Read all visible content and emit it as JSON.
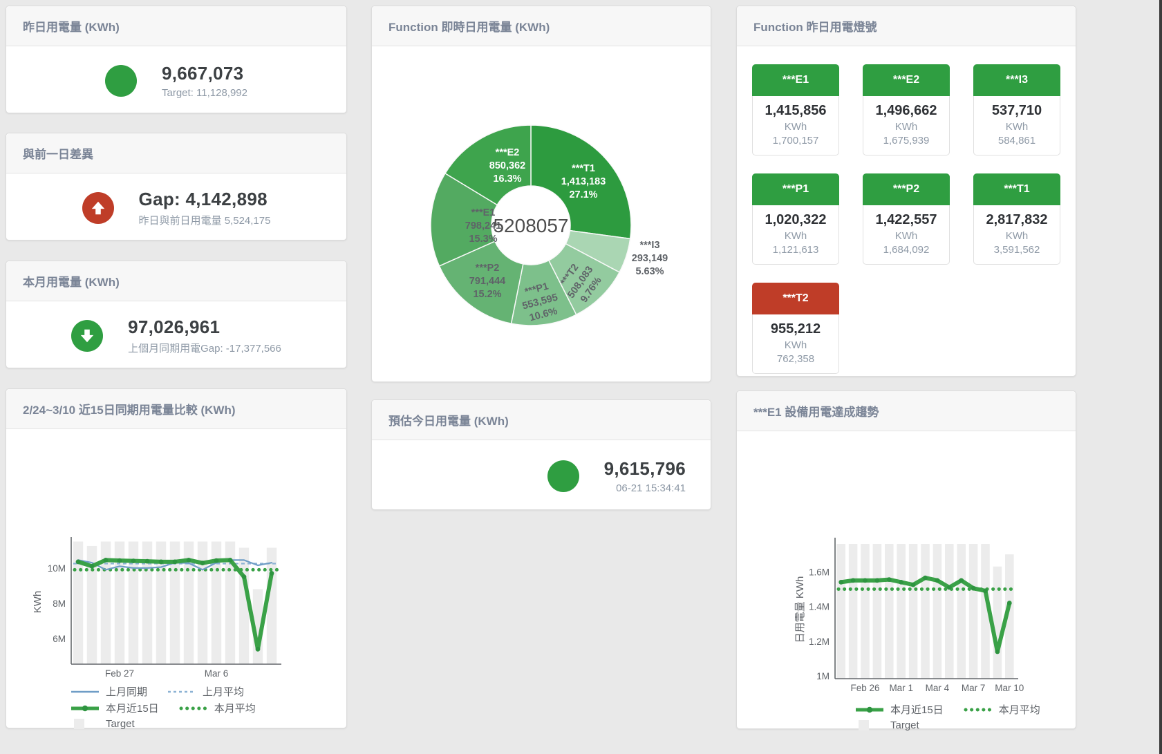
{
  "page": {
    "background": "#e9e9e9",
    "edge_color": "#3c3c3c"
  },
  "colors": {
    "green": "#2f9e41",
    "red": "#bf3d28",
    "line_green": "#3aa147",
    "blue": "#6f9dc6",
    "blue_light": "#8cb2d4",
    "bar_gray": "#ececec",
    "title_gray": "#7a8496",
    "value_dark": "#3c4043",
    "sub_gray": "#8e99a6"
  },
  "cards": {
    "yesterday": {
      "title": "昨日用電量 (KWh)",
      "value": "9,667,073",
      "subtitle": "Target: 11,128,992",
      "indicator": "green-circle"
    },
    "day_gap": {
      "title": "與前一日差異",
      "value": "Gap: 4,142,898",
      "subtitle": "昨日與前日用電量 5,524,175",
      "indicator": "red-circle-up-arrow"
    },
    "month": {
      "title": "本月用電量 (KWh)",
      "value": "97,026,961",
      "subtitle": "上個月同期用電Gap: -17,377,566",
      "indicator": "green-circle-down-arrow"
    },
    "realtime_donut": {
      "title": "Function 即時日用電量 (KWh)"
    },
    "lights": {
      "title": "Function 昨日用電燈號",
      "tiles": [
        {
          "label": "***E1",
          "value": "1,415,856",
          "unit": "KWh",
          "target": "1,700,157",
          "status": "green"
        },
        {
          "label": "***E2",
          "value": "1,496,662",
          "unit": "KWh",
          "target": "1,675,939",
          "status": "green"
        },
        {
          "label": "***I3",
          "value": "537,710",
          "unit": "KWh",
          "target": "584,861",
          "status": "green"
        },
        {
          "label": "***P1",
          "value": "1,020,322",
          "unit": "KWh",
          "target": "1,121,613",
          "status": "green"
        },
        {
          "label": "***P2",
          "value": "1,422,557",
          "unit": "KWh",
          "target": "1,684,092",
          "status": "green"
        },
        {
          "label": "***T1",
          "value": "2,817,832",
          "unit": "KWh",
          "target": "3,591,562",
          "status": "green"
        },
        {
          "label": "***T2",
          "value": "955,212",
          "unit": "KWh",
          "target": "762,358",
          "status": "red"
        }
      ]
    },
    "compare": {
      "title": "2/24~3/10 近15日同期用電量比較 (KWh)"
    },
    "estimate": {
      "title": "預估今日用電量 (KWh)",
      "value": "9,615,796",
      "subtitle": "06-21 15:34:41",
      "indicator": "green-circle"
    },
    "trend": {
      "title": "***E1 設備用電達成趨勢"
    }
  },
  "chart_data": [
    {
      "id": "donut",
      "type": "pie",
      "title": "Function 即時日用電量 (KWh)",
      "center_total": "5208057",
      "slices": [
        {
          "label": "***T1",
          "value": 1413183,
          "percent": "27.1%",
          "color": "#2d9b3f",
          "label_color": "light"
        },
        {
          "label": "***I3",
          "value": 293149,
          "percent": "5.63%",
          "color": "#aad6b3",
          "label_color": "dark",
          "label_outside": true
        },
        {
          "label": "***T2",
          "value": 508083,
          "percent": "9.76%",
          "color": "#93cb9f",
          "label_color": "dark"
        },
        {
          "label": "***P1",
          "value": 553595,
          "percent": "10.6%",
          "color": "#7dc08b",
          "label_color": "dark"
        },
        {
          "label": "***P2",
          "value": 791444,
          "percent": "15.2%",
          "color": "#65b373",
          "label_color": "dark"
        },
        {
          "label": "***E1",
          "value": 798241,
          "percent": "15.3%",
          "color": "#53aa61",
          "label_color": "dark"
        },
        {
          "label": "***E2",
          "value": 850362,
          "percent": "16.3%",
          "color": "#3ea44d",
          "label_color": "light"
        }
      ]
    },
    {
      "id": "compare",
      "type": "line+bar",
      "title": "2/24~3/10 近15日同期用電量比較 (KWh)",
      "ylabel": "KWh",
      "x_count": 15,
      "xticks": [
        {
          "index": 3,
          "label": "Feb 27"
        },
        {
          "index": 10,
          "label": "Mar 6"
        }
      ],
      "yticks": [
        {
          "value": 6000000,
          "label": "6M"
        },
        {
          "value": 8000000,
          "label": "8M"
        },
        {
          "value": 10000000,
          "label": "10M"
        }
      ],
      "ylim": [
        4550000,
        11600000
      ],
      "series": [
        {
          "name": "上月同期",
          "kind": "line",
          "color": "#6f9dc6",
          "values": [
            10450000,
            10300000,
            9900000,
            10100000,
            10000000,
            10000000,
            10050000,
            10300000,
            10280000,
            9900000,
            10300000,
            10450000,
            10450000,
            10150000,
            10300000
          ]
        },
        {
          "name": "上月平均",
          "kind": "hline-dash",
          "color": "#8cb2d4",
          "value": 10250000
        },
        {
          "name": "本月近15日",
          "kind": "line-thick",
          "color": "#3aa147",
          "values": [
            10350000,
            10100000,
            10450000,
            10420000,
            10400000,
            10380000,
            10350000,
            10350000,
            10450000,
            10280000,
            10420000,
            10450000,
            9500000,
            5400000,
            9700000
          ]
        },
        {
          "name": "本月平均",
          "kind": "hline-dots",
          "color": "#3aa147",
          "value": 9900000
        },
        {
          "name": "Target",
          "kind": "bar",
          "color": "#ececec",
          "values": [
            11500000,
            11250000,
            11500000,
            11500000,
            11500000,
            11500000,
            11500000,
            11500000,
            11500000,
            11500000,
            11500000,
            11500000,
            11150000,
            8800000,
            11150000
          ]
        }
      ]
    },
    {
      "id": "trend",
      "type": "line+bar",
      "title": "***E1 設備用電達成趨勢",
      "ylabel": "日用電量 KWh",
      "x_count": 15,
      "xticks": [
        {
          "index": 2,
          "label": "Feb 26"
        },
        {
          "index": 5,
          "label": "Mar 1"
        },
        {
          "index": 8,
          "label": "Mar 4"
        },
        {
          "index": 11,
          "label": "Mar 7"
        },
        {
          "index": 14,
          "label": "Mar 10"
        }
      ],
      "yticks": [
        {
          "value": 1000000,
          "label": "1M"
        },
        {
          "value": 1200000,
          "label": "1.2M"
        },
        {
          "value": 1400000,
          "label": "1.4M"
        },
        {
          "value": 1600000,
          "label": "1.6M"
        }
      ],
      "ylim": [
        985000,
        1780000
      ],
      "series": [
        {
          "name": "本月近15日",
          "kind": "line-thick",
          "color": "#3aa147",
          "values": [
            1540000,
            1550000,
            1550000,
            1550000,
            1555000,
            1540000,
            1525000,
            1565000,
            1550000,
            1510000,
            1550000,
            1505000,
            1490000,
            1140000,
            1420000
          ]
        },
        {
          "name": "本月平均",
          "kind": "hline-dots",
          "color": "#3aa147",
          "value": 1500000
        },
        {
          "name": "Target",
          "kind": "bar",
          "color": "#ececec",
          "values": [
            1760000,
            1760000,
            1760000,
            1760000,
            1760000,
            1760000,
            1760000,
            1760000,
            1760000,
            1760000,
            1760000,
            1760000,
            1760000,
            1630000,
            1700000
          ]
        }
      ]
    }
  ]
}
